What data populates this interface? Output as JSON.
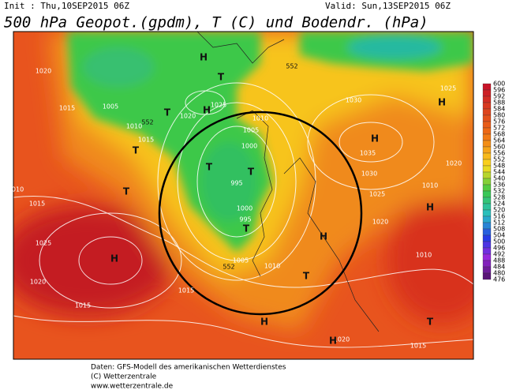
{
  "header": {
    "init": "Init : Thu,10SEP2015 06Z",
    "valid": "Valid: Sun,13SEP2015 06Z",
    "title": "500 hPa Geopot.(gpdm), T (C) und Bodendr. (hPa)"
  },
  "legend": {
    "values": [
      600,
      596,
      592,
      588,
      584,
      580,
      576,
      572,
      568,
      564,
      560,
      556,
      552,
      548,
      544,
      540,
      536,
      532,
      528,
      524,
      520,
      516,
      512,
      508,
      504,
      500,
      496,
      492,
      488,
      484,
      480,
      476
    ]
  },
  "map_labels": [
    "1020",
    "1015",
    "1005",
    "1010",
    "1015",
    "1025",
    "1020",
    "1010",
    "1005",
    "1000",
    "995",
    "1000",
    "995",
    "1005",
    "1010",
    "1015",
    "1025",
    "1020",
    "1015",
    "1010",
    "1015",
    "1030",
    "1035",
    "1030",
    "1025",
    "1020",
    "1010",
    "1025",
    "1020",
    "1010",
    "1015",
    "1020",
    "H",
    "H",
    "T",
    "T",
    "T",
    "T",
    "H",
    "T",
    "T",
    "H",
    "H",
    "H",
    "T",
    "T",
    "H",
    "H",
    "H",
    "T",
    "552",
    "552",
    "552"
  ],
  "footer": [
    "Daten: GFS-Modell des amerikanischen Wetterdienstes",
    "(C) Wetterzentrale",
    "www.wetterzentrale.de"
  ]
}
